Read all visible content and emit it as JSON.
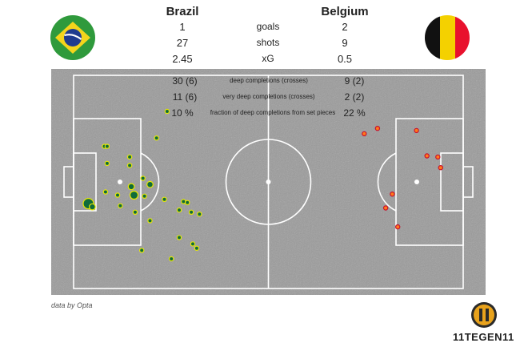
{
  "home": {
    "name": "Brazil",
    "goals": "1",
    "shots": "27",
    "xg": "2.45",
    "deep": "30 (6)",
    "very_deep": "11 (6)",
    "set_piece_frac": "10 %"
  },
  "away": {
    "name": "Belgium",
    "goals": "2",
    "shots": "9",
    "xg": "0.5",
    "deep": "9 (2)",
    "very_deep": "2 (2)",
    "set_piece_frac": "22 %"
  },
  "labels": {
    "goals": "goals",
    "shots": "shots",
    "xg": "xG",
    "deep": "deep completions (crosses)",
    "very_deep": "very deep completions (crosses)",
    "set_piece_frac": "fraction of deep completions from set pieces"
  },
  "credit": "data by Opta",
  "brand": {
    "name": "11TEGEN11",
    "logo_icon": "soccer-jersey-11-logo-icon"
  },
  "flags": {
    "home": "brazil-flag-icon",
    "away": "belgium-flag-icon"
  },
  "colors": {
    "pitch": "#9a9a9a",
    "lines": "#ffffff",
    "home_fill": "#0f6b3a",
    "home_stroke": "#e8e800",
    "away_fill": "#ff7a1a",
    "away_stroke": "#c8102e",
    "brazil_green": "#2f9a3c",
    "brazil_yellow": "#f4d51c",
    "brazil_blue": "#1f3c8f",
    "belgium_black": "#111111",
    "belgium_yellow": "#f4d100",
    "belgium_red": "#e8112d"
  },
  "chart_data": {
    "type": "scatter",
    "title": "",
    "description_units": "pitch coordinates, length 0-100 (left goal to right goal), width 0-100 (top to bottom); marker size relative",
    "series": [
      {
        "name": "Brazil",
        "points": [
          {
            "x": 7.9,
            "y": 33.3,
            "s": 1
          },
          {
            "x": 8.6,
            "y": 33.3,
            "s": 1
          },
          {
            "x": 24.0,
            "y": 16.9,
            "s": 1
          },
          {
            "x": 8.6,
            "y": 41.3,
            "s": 1
          },
          {
            "x": 14.4,
            "y": 38.3,
            "s": 1
          },
          {
            "x": 21.3,
            "y": 29.4,
            "s": 1
          },
          {
            "x": 14.4,
            "y": 42.3,
            "s": 1
          },
          {
            "x": 17.8,
            "y": 48.3,
            "s": 1
          },
          {
            "x": 14.8,
            "y": 52.2,
            "s": 2
          },
          {
            "x": 15.5,
            "y": 56.2,
            "s": 3
          },
          {
            "x": 8.2,
            "y": 54.7,
            "s": 1
          },
          {
            "x": 11.3,
            "y": 56.2,
            "s": 1
          },
          {
            "x": 12.0,
            "y": 61.2,
            "s": 1
          },
          {
            "x": 18.2,
            "y": 56.7,
            "s": 1
          },
          {
            "x": 23.3,
            "y": 58.2,
            "s": 1
          },
          {
            "x": 3.8,
            "y": 60.2,
            "s": 4
          },
          {
            "x": 4.8,
            "y": 61.7,
            "s": 2
          },
          {
            "x": 19.6,
            "y": 51.2,
            "s": 2
          },
          {
            "x": 28.2,
            "y": 59.2,
            "s": 1
          },
          {
            "x": 29.2,
            "y": 59.7,
            "s": 1
          },
          {
            "x": 27.1,
            "y": 63.2,
            "s": 1
          },
          {
            "x": 30.2,
            "y": 64.2,
            "s": 1
          },
          {
            "x": 32.3,
            "y": 65.1,
            "s": 1
          },
          {
            "x": 15.8,
            "y": 64.2,
            "s": 1
          },
          {
            "x": 19.6,
            "y": 68.2,
            "s": 1
          },
          {
            "x": 27.1,
            "y": 76.1,
            "s": 1
          },
          {
            "x": 30.6,
            "y": 79.1,
            "s": 1
          },
          {
            "x": 31.6,
            "y": 81.1,
            "s": 1
          },
          {
            "x": 17.5,
            "y": 82.1,
            "s": 1
          },
          {
            "x": 25.1,
            "y": 86.1,
            "s": 1
          }
        ]
      },
      {
        "name": "Belgium",
        "points": [
          {
            "x": 74.6,
            "y": 27.4,
            "s": 1
          },
          {
            "x": 78.0,
            "y": 24.9,
            "s": 1
          },
          {
            "x": 88.0,
            "y": 25.9,
            "s": 1
          },
          {
            "x": 93.5,
            "y": 38.3,
            "s": 1
          },
          {
            "x": 94.2,
            "y": 43.3,
            "s": 1
          },
          {
            "x": 90.7,
            "y": 37.8,
            "s": 1
          },
          {
            "x": 81.8,
            "y": 55.7,
            "s": 1
          },
          {
            "x": 80.1,
            "y": 62.2,
            "s": 1
          },
          {
            "x": 83.2,
            "y": 71.1,
            "s": 1
          }
        ]
      }
    ]
  }
}
